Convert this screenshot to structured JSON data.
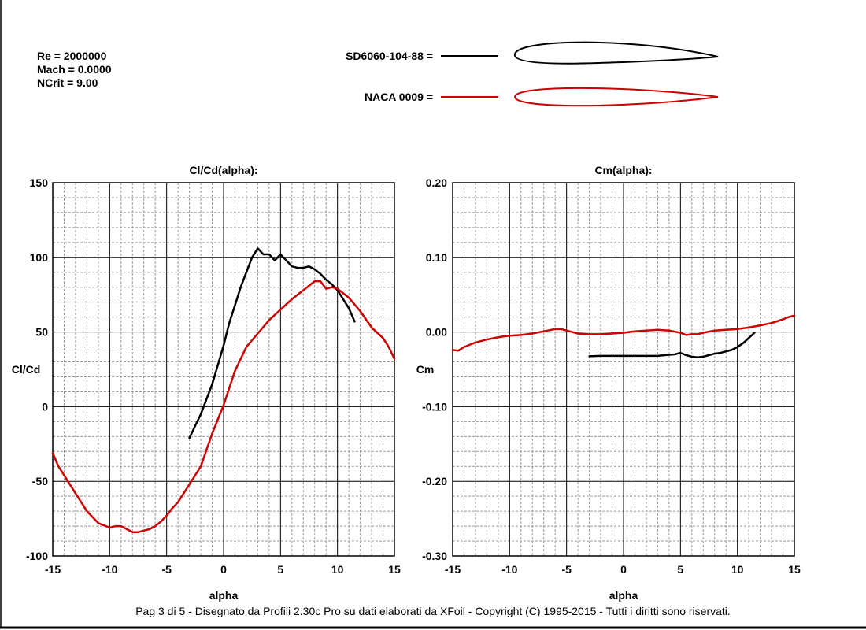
{
  "params": {
    "re": "Re = 2000000",
    "mach": "Mach = 0.0000",
    "ncrit": "NCrit = 9.00"
  },
  "legend": [
    {
      "label": "SD6060-104-88 =",
      "color": "#000000",
      "thickness": "cambered"
    },
    {
      "label": "NACA 0009 =",
      "color": "#cc0000",
      "thickness": "symmetric"
    }
  ],
  "footer": "Pag 3 di 5  -   Disegnato da Profili 2.30c Pro su dati elaborati da XFoil - Copyright (C) 1995-2015 - Tutti i diritti sono riservati.",
  "chart_data": [
    {
      "type": "line",
      "title": "Cl/Cd(alpha):",
      "xlabel": "alpha",
      "ylabel": "Cl/Cd",
      "xlim": [
        -15,
        15
      ],
      "ylim": [
        -100,
        150
      ],
      "xticks": [
        -15,
        -10,
        -5,
        0,
        5,
        10,
        15
      ],
      "yticks": [
        -100,
        -50,
        0,
        50,
        100,
        150
      ],
      "ytick_labels": [
        "-100",
        "-50",
        "0",
        "50",
        "100",
        "150"
      ],
      "grid": true,
      "series": [
        {
          "name": "SD6060-104-88",
          "color": "#000000",
          "x": [
            -3,
            -2.5,
            -2,
            -1.5,
            -1,
            -0.5,
            0,
            0.5,
            1,
            1.5,
            2,
            2.5,
            3,
            3.5,
            4,
            4.5,
            5,
            5.5,
            6,
            6.5,
            7,
            7.5,
            8,
            8.5,
            9,
            9.5,
            10,
            10.5,
            11,
            11.5
          ],
          "y": [
            -21,
            -13,
            -5,
            5,
            15,
            28,
            41,
            56,
            68,
            80,
            90,
            100,
            106,
            102,
            102,
            98,
            102,
            98,
            94,
            93,
            93,
            94,
            92,
            89,
            85,
            82,
            78,
            72,
            66,
            57
          ]
        },
        {
          "name": "NACA 0009",
          "color": "#cc0000",
          "x": [
            -15,
            -14.5,
            -14,
            -13,
            -12,
            -11,
            -10,
            -9.5,
            -9,
            -8.5,
            -8,
            -7.5,
            -7,
            -6.5,
            -6,
            -5.5,
            -5,
            -4.5,
            -4,
            -3,
            -2,
            -1,
            0,
            1,
            2,
            3,
            4,
            5,
            6,
            7,
            8,
            8.5,
            9,
            9.5,
            10,
            11,
            12,
            13,
            14,
            14.5,
            15
          ],
          "y": [
            -31,
            -40,
            -46,
            -58,
            -70,
            -78,
            -81,
            -80,
            -80,
            -82,
            -84,
            -84,
            -83,
            -82,
            -80,
            -77,
            -73,
            -68,
            -64,
            -52,
            -40,
            -18,
            1,
            24,
            40,
            49,
            58,
            65,
            72,
            78,
            84,
            84,
            79,
            80,
            79,
            73,
            64,
            53,
            46,
            40,
            32
          ]
        }
      ]
    },
    {
      "type": "line",
      "title": "Cm(alpha):",
      "xlabel": "alpha",
      "ylabel": "Cm",
      "xlim": [
        -15,
        15
      ],
      "ylim": [
        -0.3,
        0.2
      ],
      "xticks": [
        -15,
        -10,
        -5,
        0,
        5,
        10,
        15
      ],
      "yticks": [
        -0.3,
        -0.2,
        -0.1,
        0.0,
        0.1,
        0.2
      ],
      "ytick_labels": [
        "-0.30",
        "-0.20",
        "-0.10",
        "0.00",
        "0.10",
        "0.20"
      ],
      "grid": true,
      "series": [
        {
          "name": "SD6060-104-88",
          "color": "#000000",
          "x": [
            -3,
            -2,
            -1,
            0,
            1,
            2,
            3,
            4,
            4.5,
            5,
            5.5,
            6,
            6.5,
            7,
            7.5,
            8,
            8.5,
            9,
            9.5,
            10,
            10.5,
            11,
            11.5
          ],
          "y": [
            -0.0325,
            -0.032,
            -0.032,
            -0.032,
            -0.032,
            -0.032,
            -0.032,
            -0.0305,
            -0.03,
            -0.028,
            -0.031,
            -0.033,
            -0.034,
            -0.033,
            -0.031,
            -0.029,
            -0.028,
            -0.026,
            -0.024,
            -0.02,
            -0.015,
            -0.008,
            -0.001
          ]
        },
        {
          "name": "NACA 0009",
          "color": "#cc0000",
          "x": [
            -15,
            -14.5,
            -14,
            -13,
            -12,
            -11,
            -10,
            -9,
            -8,
            -7,
            -6,
            -5.5,
            -5,
            -4,
            -3,
            -2,
            -1,
            0,
            1,
            2,
            3,
            4,
            5,
            5.5,
            6,
            6.5,
            7,
            8,
            9,
            10,
            11,
            12,
            13,
            14,
            14.5,
            15
          ],
          "y": [
            -0.024,
            -0.025,
            -0.02,
            -0.014,
            -0.01,
            -0.007,
            -0.005,
            -0.004,
            -0.002,
            0.001,
            0.004,
            0.004,
            0.002,
            -0.002,
            -0.003,
            -0.003,
            -0.002,
            -0.001,
            0.001,
            0.002,
            0.003,
            0.002,
            -0.001,
            -0.004,
            -0.003,
            -0.003,
            -0.001,
            0.002,
            0.003,
            0.004,
            0.006,
            0.009,
            0.012,
            0.017,
            0.02,
            0.022
          ]
        }
      ]
    }
  ]
}
